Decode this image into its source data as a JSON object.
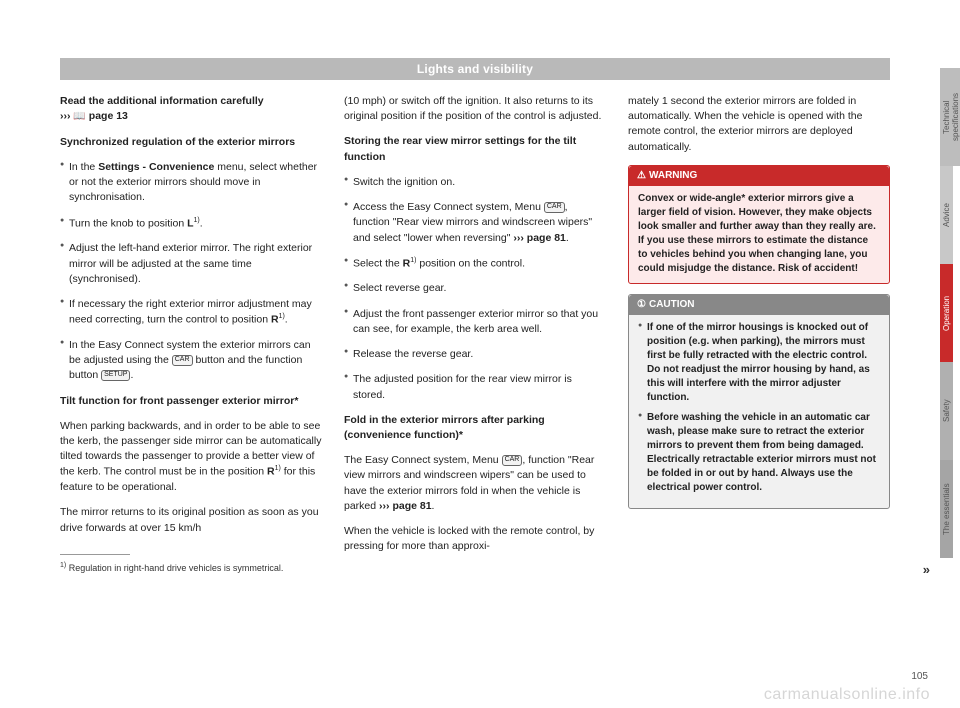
{
  "header": "Lights and visibility",
  "col1": {
    "intro_bold": "Read the additional information carefully",
    "intro_ref": "››› page 13",
    "h1": "Synchronized regulation of the exterior mirrors",
    "b1": "In the Settings - Convenience menu, select whether or not the exterior mirrors should move in synchronisation.",
    "b2_a": "Turn the knob to position ",
    "b2_b": "L",
    "b2_c": ".",
    "b3": "Adjust the left-hand exterior mirror. The right exterior mirror will be adjusted at the same time (synchronised).",
    "b4_a": "If necessary the right exterior mirror adjustment may need correcting, turn the control to position ",
    "b4_b": "R",
    "b4_c": ".",
    "b5_a": "In the Easy Connect system the exterior mirrors can be adjusted using the ",
    "b5_car": "CAR",
    "b5_b": " button and the function button ",
    "b5_setup": "SETUP",
    "b5_c": ".",
    "h2": "Tilt function for front passenger exterior mirror*",
    "p1_a": "When parking backwards, and in order to be able to see the kerb, the passenger side mirror can be automatically tilted towards the passenger to provide a better view of the kerb. The control must be in the position ",
    "p1_b": "R",
    "p1_c": " for this feature to be operational.",
    "p2": "The mirror returns to its original position as soon as you drive forwards at over 15 km/h",
    "fn_num": "1)",
    "fn_text": "Regulation in right-hand drive vehicles is symmetrical."
  },
  "col2": {
    "p0": "(10 mph) or switch off the ignition. It also returns to its original position if the position of the control is adjusted.",
    "h1": "Storing the rear view mirror settings for the tilt function",
    "b1": "Switch the ignition on.",
    "b2_a": "Access the Easy Connect system, Menu ",
    "b2_car": "CAR",
    "b2_b": ", function \"Rear view mirrors and windscreen wipers\" and select \"lower when reversing\" ",
    "b2_ref": "››› page 81",
    "b2_c": ".",
    "b3_a": "Select the ",
    "b3_b": "R",
    "b3_c": " position on the control.",
    "b4": "Select reverse gear.",
    "b5": "Adjust the front passenger exterior mirror so that you can see, for example, the kerb area well.",
    "b6": "Release the reverse gear.",
    "b7": "The adjusted position for the rear view mirror is stored.",
    "h2": "Fold in the exterior mirrors after parking (convenience function)*",
    "p1_a": "The Easy Connect system, Menu ",
    "p1_car": "CAR",
    "p1_b": ", function \"Rear view mirrors and windscreen wipers\" can be used to have the exterior mirrors fold in when the vehicle is parked ",
    "p1_ref": "››› page 81",
    "p1_c": ".",
    "p2": "When the vehicle is locked with the remote control, by pressing for more than approxi-"
  },
  "col3": {
    "p0": "mately 1 second the exterior mirrors are folded in automatically. When the vehicle is opened with the remote control, the exterior mirrors are deployed automatically.",
    "warning": {
      "title": "WARNING",
      "body": "Convex or wide-angle* exterior mirrors give a larger field of vision. However, they make objects look smaller and further away than they really are. If you use these mirrors to estimate the distance to vehicles behind you when changing lane, you could misjudge the distance. Risk of accident!"
    },
    "caution": {
      "title": "CAUTION",
      "b1": "If one of the mirror housings is knocked out of position (e.g. when parking), the mirrors must first be fully retracted with the electric control. Do not readjust the mirror housing by hand, as this will interfere with the mirror adjuster function.",
      "b2": "Before washing the vehicle in an automatic car wash, please make sure to retract the exterior mirrors to prevent them from being damaged. Electrically retractable exterior mirrors must not be folded in or out by hand. Always use the electrical power control."
    }
  },
  "tabs": {
    "t1": "Technical specifications",
    "t2": "Advice",
    "t3": "Operation",
    "t4": "Safety",
    "t5": "The essentials"
  },
  "continue_mark": "»",
  "page_number": "105",
  "watermark": "carmanualsonline.info"
}
